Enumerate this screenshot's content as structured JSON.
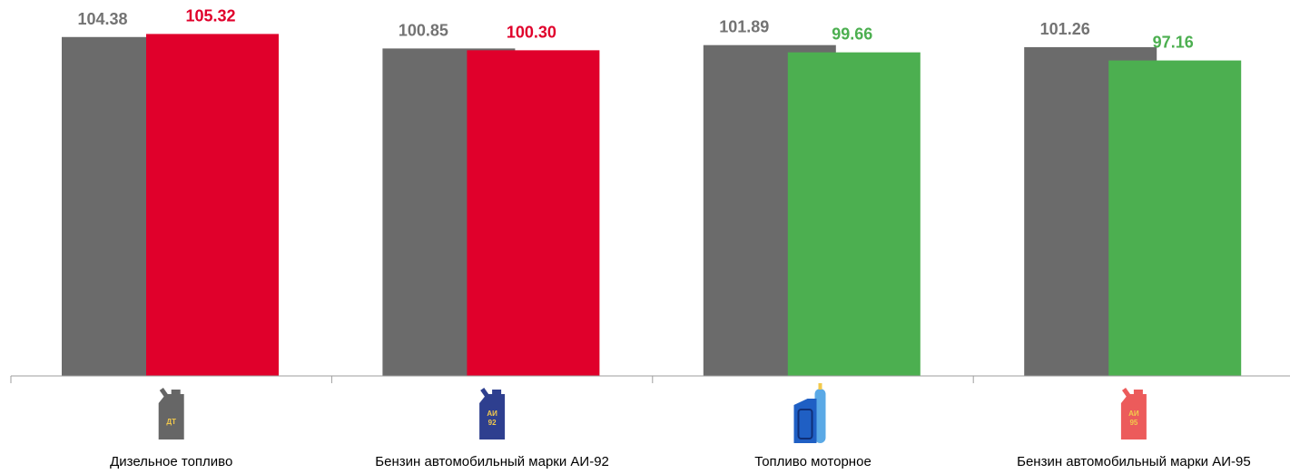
{
  "chart_data": {
    "type": "bar",
    "title": "",
    "xlabel": "",
    "ylabel": "",
    "ylim": [
      0,
      110
    ],
    "grid": false,
    "legend": false,
    "categories": [
      "Дизельное топливо",
      "Бензин автомобильный марки АИ-92",
      "Топливо моторное",
      "Бензин автомобильный марки АИ-95"
    ],
    "series": [
      {
        "values": [
          104.38,
          100.85,
          101.89,
          101.26
        ],
        "color": "#6b6b6b",
        "label_color": "#737373"
      },
      {
        "values": [
          105.32,
          100.3,
          99.66,
          97.16
        ],
        "colors": [
          "#e0002b",
          "#e0002b",
          "#4caf50",
          "#4caf50"
        ]
      }
    ],
    "icons": [
      {
        "name": "diesel-canister-icon",
        "text": "ДТ",
        "color": "#666666",
        "text_color": "#f2c94c"
      },
      {
        "name": "ai92-canister-icon",
        "text": [
          "АИ",
          "92"
        ],
        "color": "#2e3f8f",
        "text_color": "#f2c94c"
      },
      {
        "name": "motor-fuel-canister-icon",
        "text": "",
        "color": "#1f5fc4",
        "text_color": ""
      },
      {
        "name": "ai95-canister-icon",
        "text": [
          "АИ",
          "95"
        ],
        "color": "#ec5b5b",
        "text_color": "#f2c94c"
      }
    ]
  }
}
